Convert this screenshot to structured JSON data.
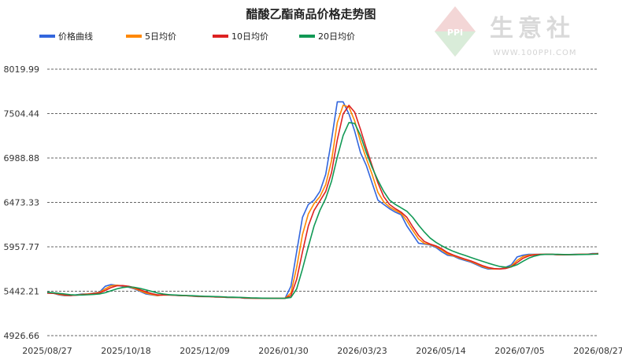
{
  "chart_data": {
    "type": "line",
    "title": "醋酸乙酯商品价格走势图",
    "xlabel": "",
    "ylabel": "",
    "x_ticks": [
      "2025/08/27",
      "2025/10/18",
      "2025/12/09",
      "2026/01/30",
      "2026/03/23",
      "2026/05/14",
      "2026/07/05",
      "2026/08/27"
    ],
    "y_ticks": [
      "4926.66",
      "5442.21",
      "5957.77",
      "6473.33",
      "6988.88",
      "7504.44",
      "8019.99"
    ],
    "ylim": [
      4926.66,
      8019.99
    ],
    "grid": "horizontal dashed",
    "legend_position": "top",
    "series": [
      {
        "name": "价格曲线",
        "color": "#3366dd",
        "values": [
          5430,
          5420,
          5400,
          5390,
          5390,
          5400,
          5410,
          5410,
          5420,
          5430,
          5500,
          5520,
          5510,
          5500,
          5490,
          5470,
          5440,
          5410,
          5400,
          5390,
          5400,
          5400,
          5395,
          5390,
          5390,
          5385,
          5380,
          5380,
          5380,
          5375,
          5375,
          5370,
          5370,
          5370,
          5360,
          5360,
          5360,
          5360,
          5360,
          5360,
          5360,
          5360,
          5500,
          5900,
          6300,
          6450,
          6500,
          6600,
          6800,
          7200,
          7640,
          7640,
          7500,
          7300,
          7050,
          6900,
          6700,
          6500,
          6450,
          6400,
          6360,
          6330,
          6200,
          6100,
          6000,
          5990,
          5980,
          5950,
          5900,
          5860,
          5850,
          5820,
          5800,
          5780,
          5750,
          5720,
          5700,
          5700,
          5700,
          5720,
          5750,
          5840,
          5860,
          5870,
          5870,
          5870,
          5870,
          5870,
          5865,
          5865,
          5868,
          5870,
          5870,
          5870,
          5880,
          5880
        ]
      },
      {
        "name": "5日均价",
        "color": "#ff8800",
        "values": [
          5425,
          5420,
          5405,
          5395,
          5392,
          5398,
          5405,
          5410,
          5418,
          5428,
          5470,
          5505,
          5512,
          5505,
          5493,
          5475,
          5448,
          5420,
          5405,
          5393,
          5398,
          5399,
          5396,
          5391,
          5390,
          5386,
          5382,
          5380,
          5380,
          5376,
          5375,
          5371,
          5370,
          5370,
          5363,
          5361,
          5360,
          5360,
          5360,
          5360,
          5360,
          5360,
          5420,
          5720,
          6100,
          6340,
          6460,
          6540,
          6680,
          6960,
          7400,
          7600,
          7580,
          7420,
          7180,
          6980,
          6800,
          6590,
          6480,
          6420,
          6380,
          6345,
          6260,
          6150,
          6050,
          5998,
          5985,
          5960,
          5920,
          5875,
          5855,
          5830,
          5808,
          5788,
          5760,
          5730,
          5710,
          5700,
          5700,
          5712,
          5735,
          5800,
          5845,
          5862,
          5868,
          5870,
          5870,
          5870,
          5866,
          5865,
          5867,
          5869,
          5870,
          5870,
          5876,
          5879
        ]
      },
      {
        "name": "10日均价",
        "color": "#dd2222",
        "values": [
          5420,
          5418,
          5410,
          5400,
          5395,
          5396,
          5402,
          5407,
          5414,
          5422,
          5450,
          5485,
          5505,
          5508,
          5500,
          5485,
          5460,
          5435,
          5415,
          5400,
          5398,
          5398,
          5396,
          5392,
          5391,
          5388,
          5384,
          5381,
          5380,
          5377,
          5376,
          5372,
          5371,
          5370,
          5366,
          5363,
          5361,
          5360,
          5360,
          5360,
          5360,
          5360,
          5390,
          5580,
          5900,
          6200,
          6380,
          6490,
          6600,
          6820,
          7200,
          7500,
          7600,
          7520,
          7320,
          7100,
          6900,
          6700,
          6540,
          6450,
          6400,
          6360,
          6300,
          6190,
          6090,
          6020,
          5990,
          5968,
          5935,
          5890,
          5862,
          5838,
          5815,
          5794,
          5768,
          5740,
          5718,
          5705,
          5700,
          5706,
          5725,
          5775,
          5825,
          5852,
          5865,
          5869,
          5870,
          5870,
          5867,
          5865,
          5866,
          5868,
          5870,
          5870,
          5874,
          5878
        ]
      },
      {
        "name": "20日均价",
        "color": "#119955",
        "values": [
          5430,
          5425,
          5418,
          5410,
          5402,
          5398,
          5398,
          5401,
          5405,
          5410,
          5425,
          5448,
          5470,
          5485,
          5492,
          5488,
          5475,
          5458,
          5440,
          5422,
          5410,
          5402,
          5398,
          5395,
          5392,
          5390,
          5387,
          5384,
          5382,
          5380,
          5378,
          5375,
          5373,
          5371,
          5369,
          5366,
          5364,
          5362,
          5361,
          5360,
          5360,
          5360,
          5370,
          5470,
          5700,
          5960,
          6200,
          6380,
          6520,
          6720,
          7000,
          7250,
          7400,
          7390,
          7250,
          7050,
          6880,
          6730,
          6600,
          6500,
          6450,
          6410,
          6370,
          6300,
          6210,
          6130,
          6060,
          6010,
          5970,
          5935,
          5905,
          5880,
          5858,
          5835,
          5812,
          5790,
          5768,
          5748,
          5730,
          5722,
          5726,
          5750,
          5790,
          5826,
          5850,
          5866,
          5870,
          5870,
          5870,
          5868,
          5867,
          5867,
          5868,
          5869,
          5871,
          5874
        ]
      }
    ]
  },
  "watermark": {
    "name": "生意社",
    "url": "WWW.100PPI.COM",
    "logo_text": "PPI"
  }
}
